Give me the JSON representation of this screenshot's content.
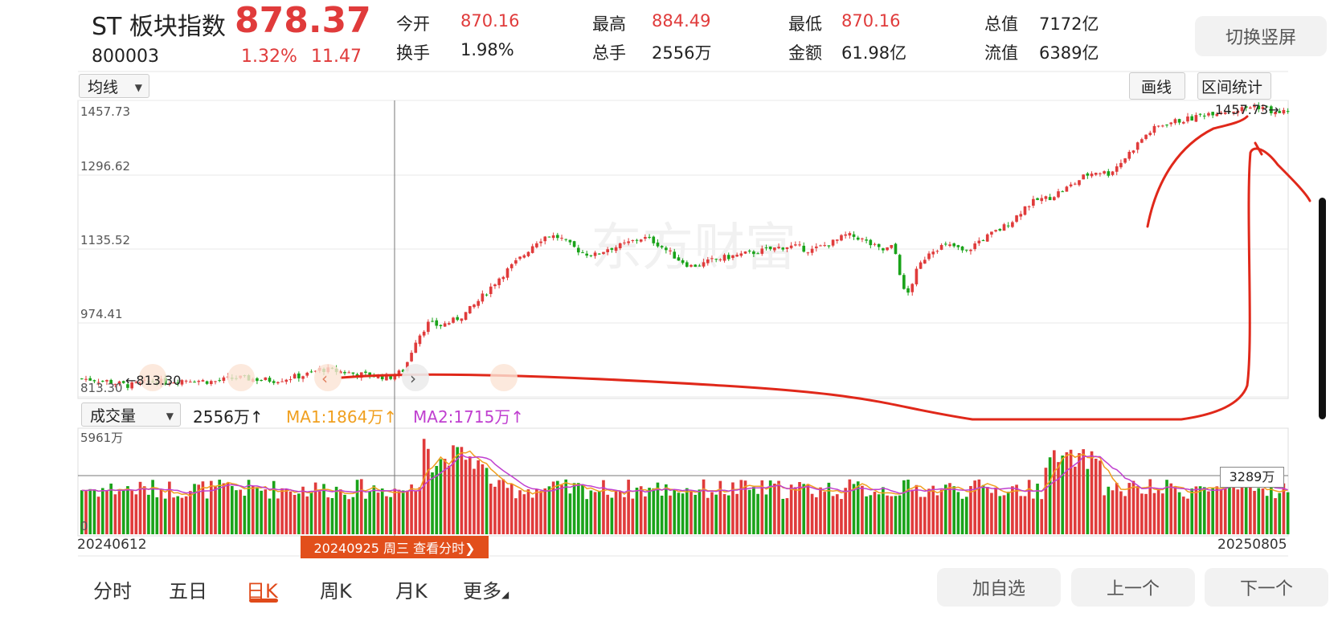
{
  "header": {
    "title": "ST 板块指数",
    "price": "878.37",
    "code": "800003",
    "change_pct": "1.32%",
    "change_val": "11.47",
    "stats": [
      {
        "label": "今开",
        "value": "870.16",
        "color": "red"
      },
      {
        "label": "最高",
        "value": "884.49",
        "color": "red"
      },
      {
        "label": "最低",
        "value": "870.16",
        "color": "red"
      },
      {
        "label": "总值",
        "value": "7172亿",
        "color": "black"
      },
      {
        "label": "换手",
        "value": "1.98%",
        "color": "black"
      },
      {
        "label": "总手",
        "value": "2556万",
        "color": "black"
      },
      {
        "label": "金额",
        "value": "61.98亿",
        "color": "black"
      },
      {
        "label": "流值",
        "value": "6389亿",
        "color": "black"
      }
    ],
    "switch_button": "切换竖屏"
  },
  "chart_controls": {
    "ma_select": "均线",
    "draw_button": "画线",
    "range_stats_button": "区间统计",
    "volume_select": "成交量",
    "volume_value": "2556万↑",
    "ma1": "MA1:1864万↑",
    "ma2": "MA2:1715万↑"
  },
  "price_axis": [
    "1457.73",
    "1296.62",
    "1135.52",
    "974.41",
    "813.30"
  ],
  "price_markers": {
    "high_label": "1457.73→",
    "low_label": "←813.30"
  },
  "volume_axis": {
    "top": "5961万",
    "bottom": "0",
    "current": "3289万"
  },
  "date_axis": {
    "start": "20240612",
    "end": "20250805",
    "crosshair": "20240925 周三 查看分时❯"
  },
  "watermark": "东方财富",
  "tabs": [
    {
      "label": "分时",
      "active": false
    },
    {
      "label": "五日",
      "active": false
    },
    {
      "label": "日K",
      "active": true
    },
    {
      "label": "周K",
      "active": false
    },
    {
      "label": "月K",
      "active": false
    },
    {
      "label": "更多",
      "active": false
    }
  ],
  "bottom_buttons": {
    "add_watch": "加自选",
    "prev": "上一个",
    "next": "下一个"
  },
  "colors": {
    "up": "#e03b3b",
    "down": "#1aa31a",
    "ma1": "#f0a020",
    "ma2": "#c040d0",
    "accent": "#e04a1a",
    "annotation": "#e0281a"
  },
  "chart_data": {
    "type": "candlestick",
    "x_range": [
      "20240612",
      "20250805"
    ],
    "y_range": [
      813.3,
      1457.73
    ],
    "trend_closes": [
      840,
      838,
      835,
      829,
      824,
      830,
      834,
      832,
      836,
      838,
      835,
      833,
      838,
      842,
      840,
      838,
      836,
      840,
      845,
      850,
      862,
      858,
      855,
      850,
      848,
      845,
      844,
      860,
      930,
      965,
      960,
      970,
      985,
      1010,
      1040,
      1070,
      1095,
      1120,
      1150,
      1165,
      1160,
      1140,
      1125,
      1120,
      1135,
      1140,
      1150,
      1160,
      1150,
      1130,
      1110,
      1095,
      1100,
      1110,
      1115,
      1120,
      1125,
      1130,
      1135,
      1140,
      1138,
      1130,
      1140,
      1150,
      1165,
      1160,
      1145,
      1130,
      1140,
      1020,
      1090,
      1130,
      1140,
      1140,
      1125,
      1150,
      1165,
      1180,
      1200,
      1230,
      1245,
      1250,
      1265,
      1280,
      1300,
      1310,
      1305,
      1330,
      1360,
      1390,
      1410,
      1420,
      1425,
      1430,
      1440,
      1445,
      1447,
      1450,
      1457,
      1455,
      1440,
      1448
    ]
  }
}
